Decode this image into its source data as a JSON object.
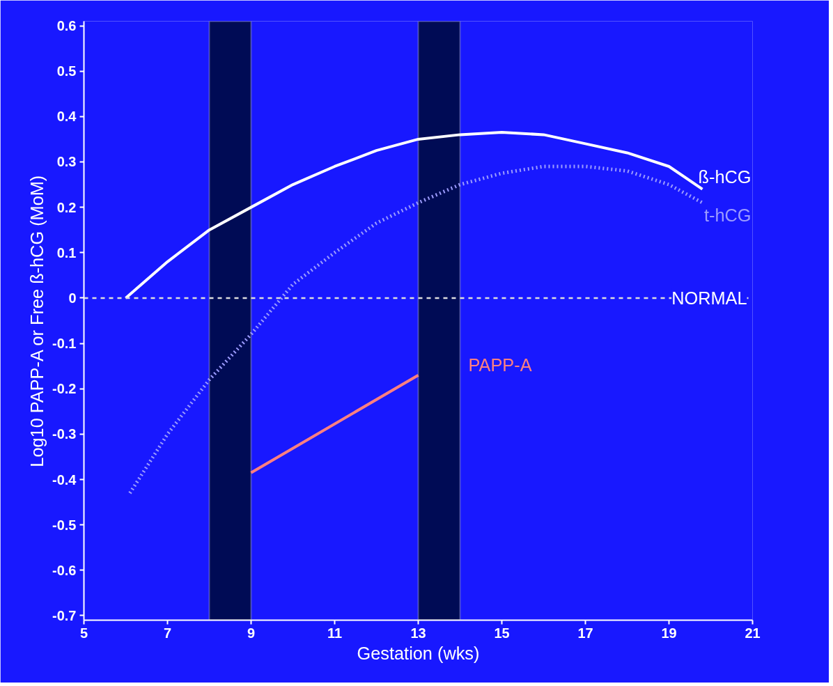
{
  "chart_data": {
    "type": "line",
    "xlabel": "Gestation (wks)",
    "ylabel": "Log10 PAPP-A or Free ß-hCG (MoM)",
    "xlim": [
      5,
      21
    ],
    "ylim": [
      -0.71,
      0.61
    ],
    "xticks": [
      5,
      7,
      9,
      11,
      13,
      15,
      17,
      19,
      21
    ],
    "yticks": [
      {
        "value": 0.6,
        "label": "0.6"
      },
      {
        "value": 0.5,
        "label": "0.5"
      },
      {
        "value": 0.4,
        "label": "0.4"
      },
      {
        "value": 0.3,
        "label": "0.3"
      },
      {
        "value": 0.2,
        "label": "0.2"
      },
      {
        "value": 0.1,
        "label": "0.1"
      },
      0,
      {
        "value": -0.1,
        "label": "-0.1"
      },
      {
        "value": -0.2,
        "label": "-0.2"
      },
      {
        "value": -0.3,
        "label": "-0.3"
      },
      {
        "value": -0.4,
        "label": "-0.4"
      },
      {
        "value": -0.5,
        "label": "-0.5"
      },
      {
        "value": -0.6,
        "label": "-0.6"
      },
      {
        "value": -0.7,
        "label": "-0.7"
      }
    ],
    "grid": false,
    "series": [
      {
        "name": "ß-hCG",
        "color": "#ffffff",
        "line_style": "solid",
        "x": [
          6,
          7,
          8,
          9,
          10,
          11,
          12,
          13,
          14,
          15,
          16,
          17,
          18,
          19,
          19.8
        ],
        "values": [
          0,
          0.08,
          0.15,
          0.2,
          0.25,
          0.29,
          0.325,
          0.35,
          0.36,
          0.365,
          0.36,
          0.34,
          0.32,
          0.29,
          0.24
        ]
      },
      {
        "name": "t-hCG",
        "color": "#9c9cff",
        "line_style": "dotted",
        "x": [
          6.1,
          7,
          8,
          9,
          10,
          11,
          12,
          13,
          14,
          15,
          16,
          17,
          18,
          19,
          19.8
        ],
        "values": [
          -0.43,
          -0.3,
          -0.18,
          -0.08,
          0.03,
          0.1,
          0.165,
          0.21,
          0.25,
          0.275,
          0.29,
          0.29,
          0.28,
          0.25,
          0.21
        ]
      },
      {
        "name": "PAPP-A",
        "color": "#ff8080",
        "line_style": "solid",
        "x": [
          9,
          13
        ],
        "values": [
          -0.385,
          -0.17
        ]
      }
    ],
    "ref_lines": [
      {
        "axis": "y",
        "value": 0,
        "label": "NORMAL",
        "color": "#dddddd",
        "line_style": "dashed"
      }
    ],
    "bands": [
      {
        "axis": "x",
        "from": 8,
        "to": 9,
        "color": "#000b55"
      },
      {
        "axis": "x",
        "from": 13,
        "to": 14,
        "color": "#000b55"
      }
    ]
  }
}
